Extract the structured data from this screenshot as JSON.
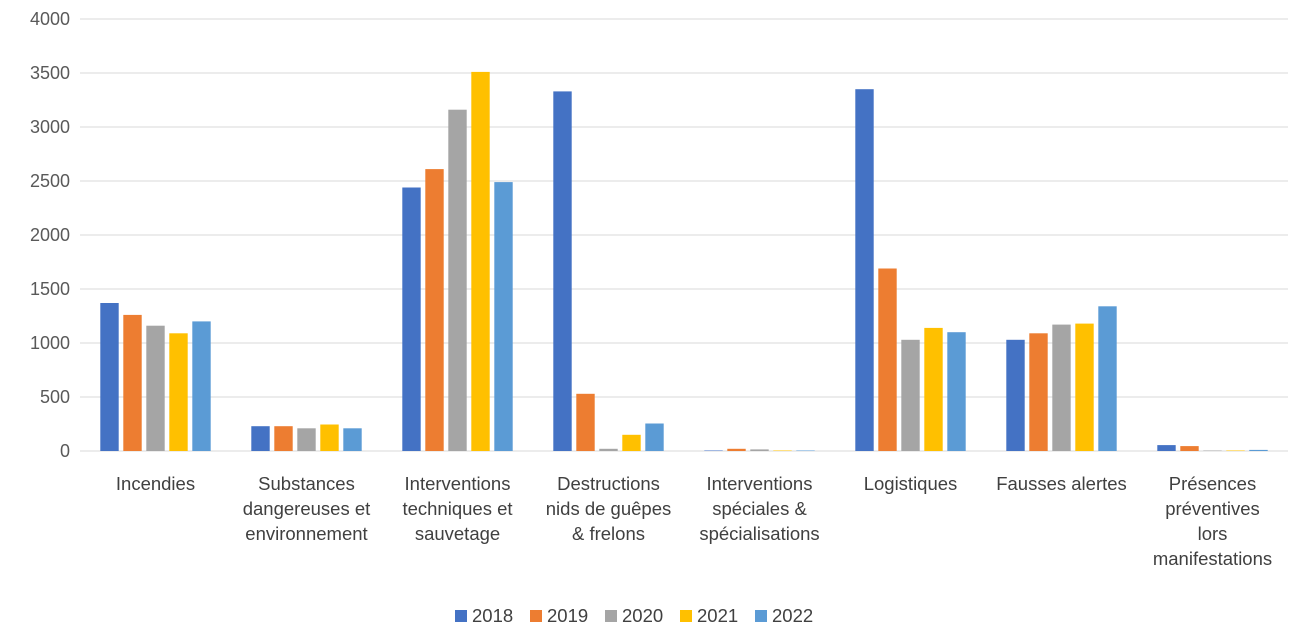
{
  "chart_data": {
    "type": "bar",
    "title": "",
    "xlabel": "",
    "ylabel": "",
    "ylim": [
      0,
      4000
    ],
    "yticks": [
      0,
      500,
      1000,
      1500,
      2000,
      2500,
      3000,
      3500,
      4000
    ],
    "grid": true,
    "legend_position": "bottom",
    "categories": [
      [
        "Incendies"
      ],
      [
        "Substances",
        "dangereuses et",
        "environnement"
      ],
      [
        "Interventions",
        "techniques et",
        "sauvetage"
      ],
      [
        "Destructions",
        "nids de guêpes",
        "& frelons"
      ],
      [
        "Interventions",
        "spéciales &",
        "spécialisations"
      ],
      [
        "Logistiques"
      ],
      [
        "Fausses alertes"
      ],
      [
        "Présences",
        "préventives",
        "lors",
        "manifestations"
      ]
    ],
    "series": [
      {
        "name": "2018",
        "color": "#4472c4",
        "values": [
          1370,
          230,
          2440,
          3330,
          5,
          3350,
          1030,
          55
        ]
      },
      {
        "name": "2019",
        "color": "#ed7d31",
        "values": [
          1260,
          230,
          2610,
          530,
          20,
          1690,
          1090,
          45
        ]
      },
      {
        "name": "2020",
        "color": "#a5a5a5",
        "values": [
          1160,
          210,
          3160,
          20,
          15,
          1030,
          1170,
          5
        ]
      },
      {
        "name": "2021",
        "color": "#ffc000",
        "values": [
          1090,
          245,
          3510,
          150,
          5,
          1140,
          1180,
          5
        ]
      },
      {
        "name": "2022",
        "color": "#5b9bd5",
        "values": [
          1200,
          210,
          2490,
          255,
          5,
          1100,
          1340,
          10
        ]
      }
    ]
  }
}
